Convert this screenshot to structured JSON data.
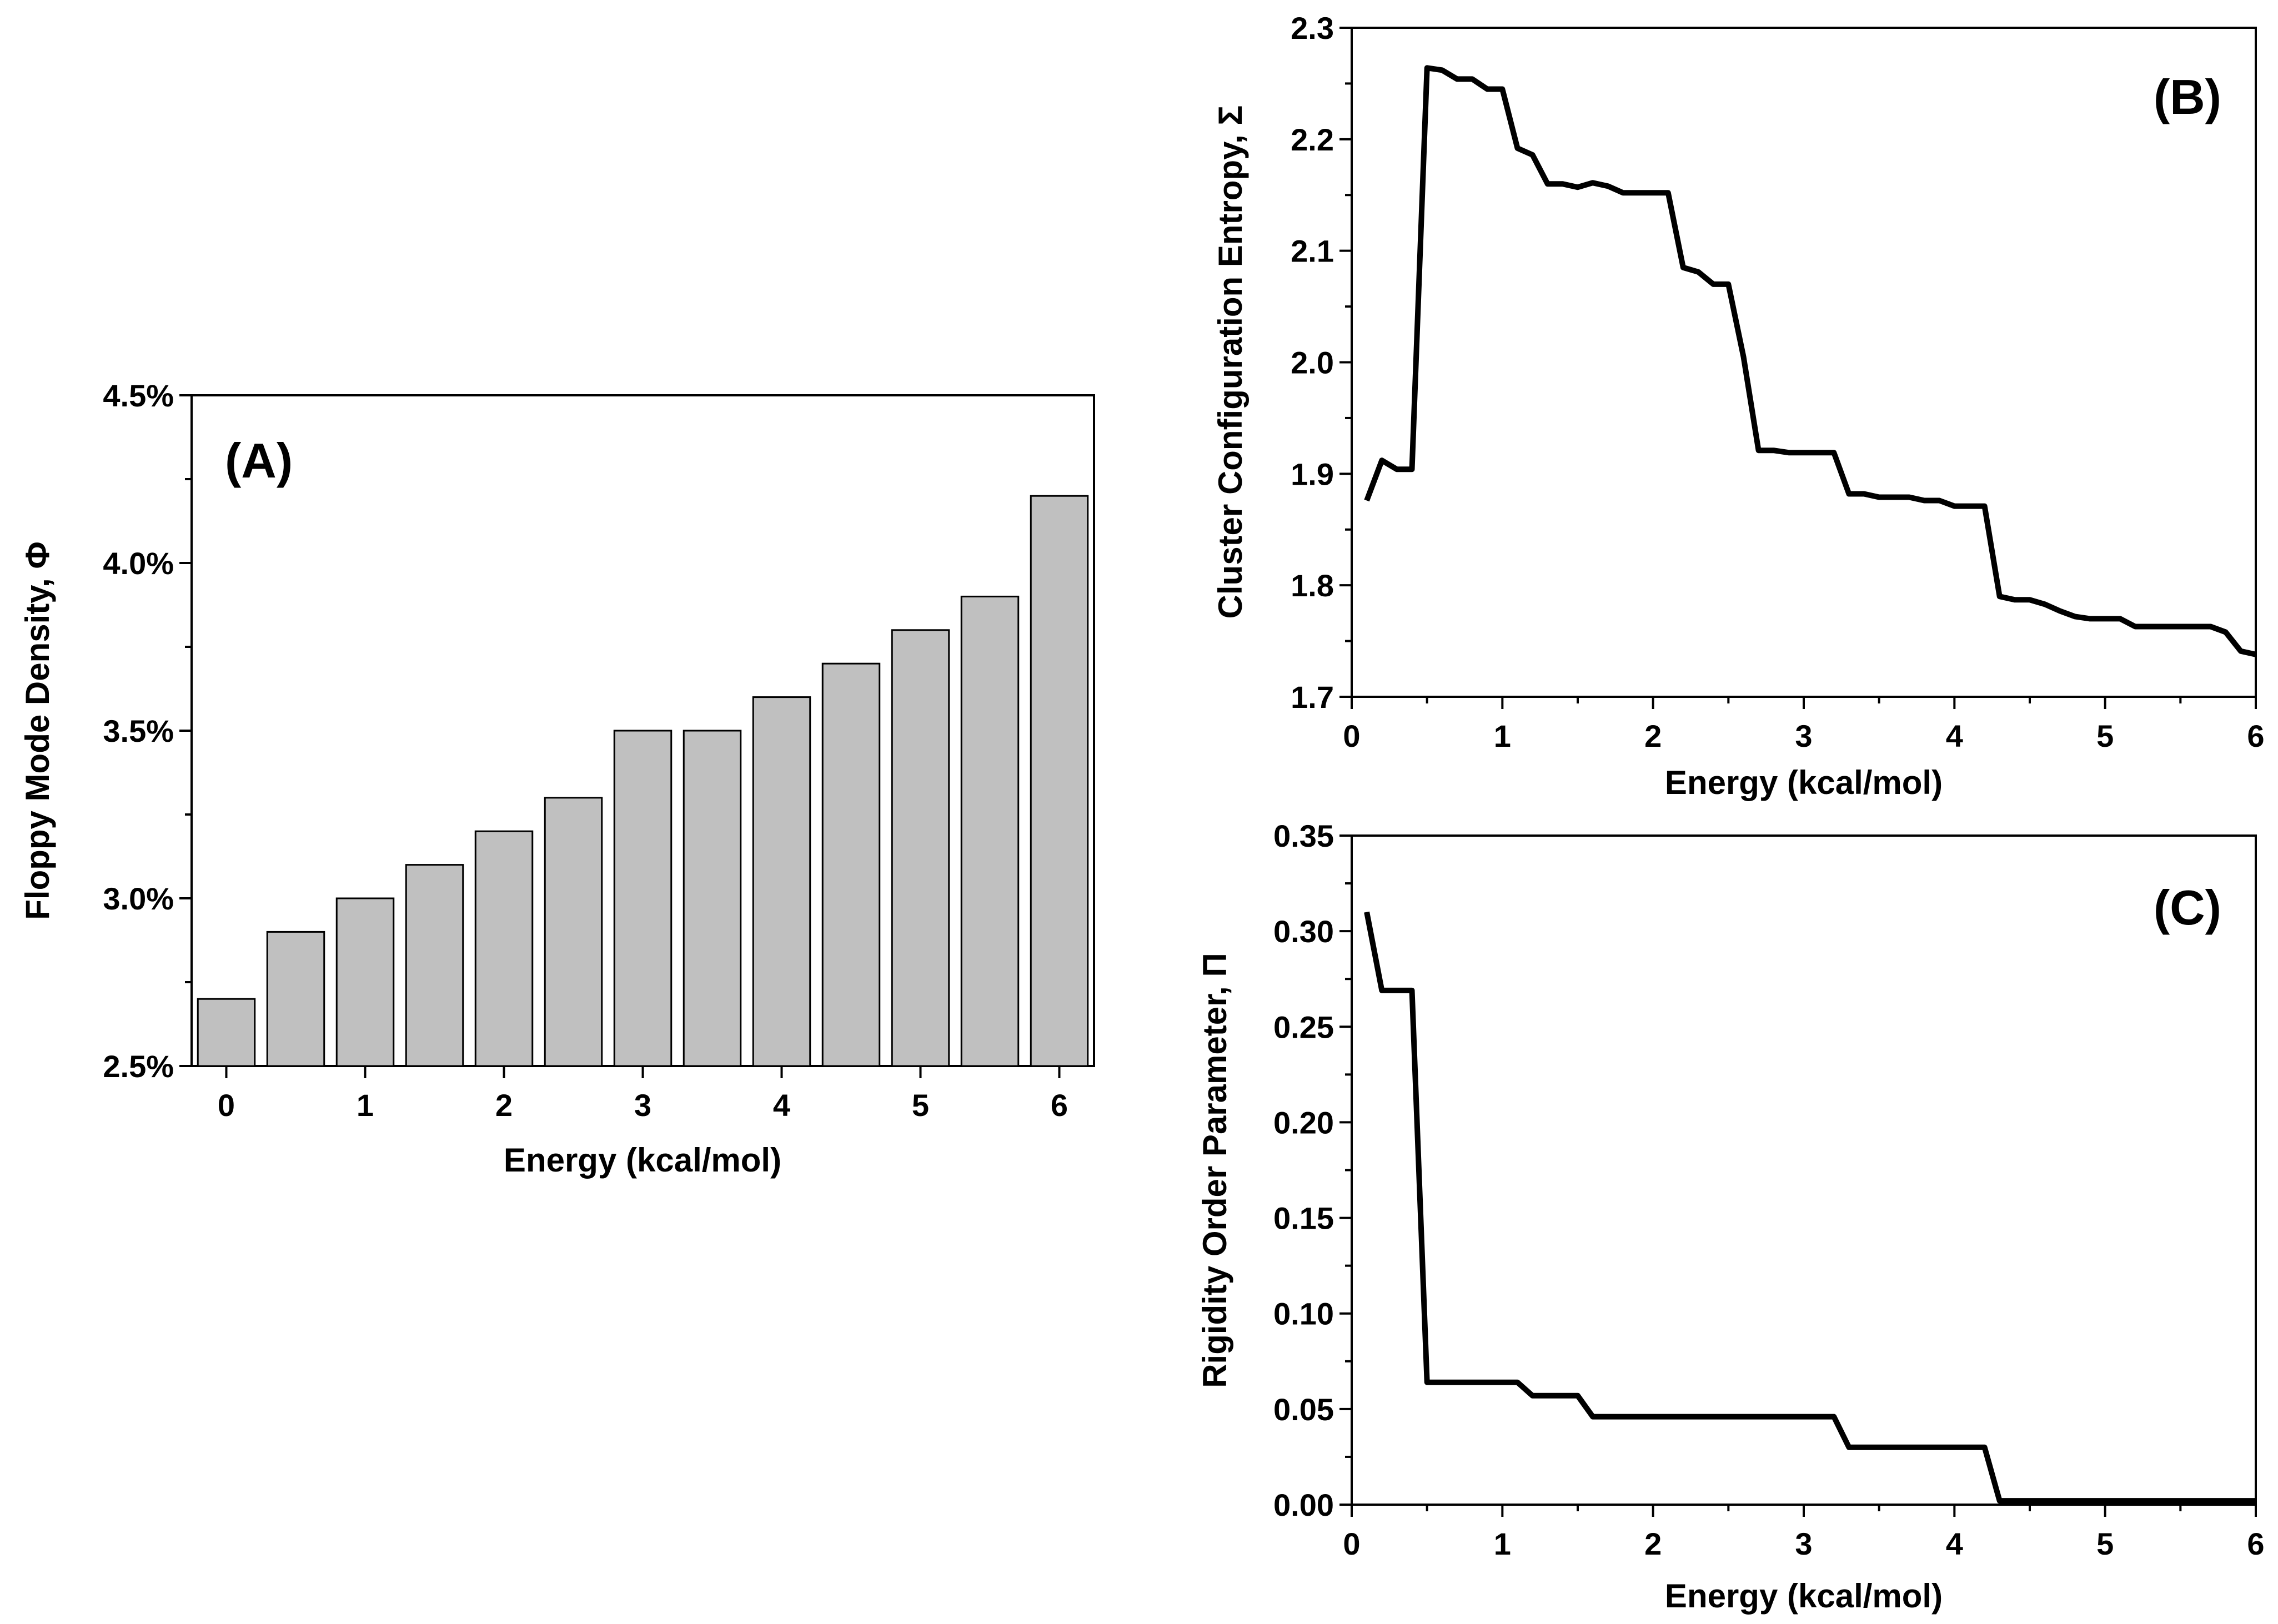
{
  "chart_data": [
    {
      "type": "bar",
      "panel_label": "(A)",
      "xlabel": "Energy (kcal/mol)",
      "ylabel": "Floppy Mode Density, Φ",
      "x": [
        0,
        0.5,
        1,
        1.5,
        2,
        2.5,
        3,
        3.5,
        4,
        4.5,
        5,
        5.5,
        6
      ],
      "values": [
        2.7,
        2.9,
        3.0,
        3.1,
        3.2,
        3.3,
        3.5,
        3.5,
        3.6,
        3.7,
        3.8,
        3.9,
        4.2
      ],
      "xlim": [
        -0.25,
        6.25
      ],
      "ylim": [
        2.5,
        4.5
      ],
      "xticks": [
        0,
        1,
        2,
        3,
        4,
        5,
        6
      ],
      "xtick_labels": [
        "0",
        "1",
        "2",
        "3",
        "4",
        "5",
        "6"
      ],
      "yticks": [
        2.5,
        3.0,
        3.5,
        4.0,
        4.5
      ],
      "ytick_labels": [
        "2.5%",
        "3.0%",
        "3.5%",
        "4.0%",
        "4.5%"
      ],
      "bar_color": "#c0c0c0",
      "grid": false
    },
    {
      "type": "line",
      "panel_label": "(B)",
      "xlabel": "Energy (kcal/mol)",
      "ylabel": "Cluster Configuration Entropy, Σ",
      "x": [
        0.1,
        0.2,
        0.3,
        0.4,
        0.5,
        0.6,
        0.7,
        0.8,
        0.9,
        1.0,
        1.1,
        1.2,
        1.3,
        1.4,
        1.5,
        1.6,
        1.7,
        1.8,
        1.9,
        2.0,
        2.1,
        2.2,
        2.3,
        2.4,
        2.5,
        2.6,
        2.7,
        2.8,
        2.9,
        3.0,
        3.1,
        3.2,
        3.3,
        3.4,
        3.5,
        3.6,
        3.7,
        3.8,
        3.9,
        4.0,
        4.1,
        4.2,
        4.3,
        4.4,
        4.5,
        4.6,
        4.7,
        4.8,
        4.9,
        5.0,
        5.1,
        5.2,
        5.3,
        5.4,
        5.5,
        5.6,
        5.7,
        5.8,
        5.9,
        6.0
      ],
      "y": [
        1.876,
        1.912,
        1.904,
        1.904,
        2.264,
        2.262,
        2.254,
        2.254,
        2.245,
        2.245,
        2.192,
        2.186,
        2.16,
        2.16,
        2.157,
        2.161,
        2.158,
        2.152,
        2.152,
        2.152,
        2.152,
        2.085,
        2.081,
        2.07,
        2.07,
        2.005,
        1.921,
        1.921,
        1.919,
        1.919,
        1.919,
        1.919,
        1.882,
        1.882,
        1.879,
        1.879,
        1.879,
        1.876,
        1.876,
        1.871,
        1.871,
        1.871,
        1.79,
        1.787,
        1.787,
        1.783,
        1.777,
        1.772,
        1.77,
        1.77,
        1.77,
        1.763,
        1.763,
        1.763,
        1.763,
        1.763,
        1.763,
        1.758,
        1.741,
        1.738
      ],
      "xlim": [
        0,
        6
      ],
      "ylim": [
        1.7,
        2.3
      ],
      "xticks": [
        0,
        1,
        2,
        3,
        4,
        5,
        6
      ],
      "xtick_labels": [
        "0",
        "1",
        "2",
        "3",
        "4",
        "5",
        "6"
      ],
      "yticks": [
        1.7,
        1.8,
        1.9,
        2.0,
        2.1,
        2.2,
        2.3
      ],
      "ytick_labels": [
        "1.7",
        "1.8",
        "1.9",
        "2.0",
        "2.1",
        "2.2",
        "2.3"
      ],
      "line_color": "#000000",
      "grid": false
    },
    {
      "type": "line",
      "panel_label": "(C)",
      "xlabel": "Energy (kcal/mol)",
      "ylabel": "Rigidity Order Parameter, Π",
      "x": [
        0.1,
        0.2,
        0.3,
        0.4,
        0.5,
        0.6,
        0.7,
        0.8,
        0.9,
        1.0,
        1.1,
        1.2,
        1.3,
        1.4,
        1.5,
        1.6,
        1.7,
        1.8,
        1.9,
        2.0,
        2.1,
        2.2,
        2.3,
        2.4,
        2.5,
        2.6,
        2.7,
        2.8,
        2.9,
        3.0,
        3.1,
        3.2,
        3.3,
        3.4,
        3.5,
        3.6,
        3.7,
        3.8,
        3.9,
        4.0,
        4.1,
        4.2,
        4.3,
        4.4,
        4.5,
        4.6,
        4.7,
        4.8,
        4.9,
        5.0,
        5.1,
        5.2,
        5.3,
        5.4,
        5.5,
        5.6,
        5.7,
        5.8,
        5.9,
        6.0
      ],
      "y": [
        0.31,
        0.269,
        0.269,
        0.269,
        0.064,
        0.064,
        0.064,
        0.064,
        0.064,
        0.064,
        0.064,
        0.057,
        0.057,
        0.057,
        0.057,
        0.046,
        0.046,
        0.046,
        0.046,
        0.046,
        0.046,
        0.046,
        0.046,
        0.046,
        0.046,
        0.046,
        0.046,
        0.046,
        0.046,
        0.046,
        0.046,
        0.046,
        0.03,
        0.03,
        0.03,
        0.03,
        0.03,
        0.03,
        0.03,
        0.03,
        0.03,
        0.03,
        0.002,
        0.002,
        0.002,
        0.002,
        0.002,
        0.002,
        0.002,
        0.002,
        0.002,
        0.002,
        0.002,
        0.002,
        0.002,
        0.002,
        0.002,
        0.002,
        0.002,
        0.002
      ],
      "xlim": [
        0,
        6
      ],
      "ylim": [
        0,
        0.35
      ],
      "xticks": [
        0,
        1,
        2,
        3,
        4,
        5,
        6
      ],
      "xtick_labels": [
        "0",
        "1",
        "2",
        "3",
        "4",
        "5",
        "6"
      ],
      "yticks": [
        0,
        0.05,
        0.1,
        0.15,
        0.2,
        0.25,
        0.3,
        0.35
      ],
      "ytick_labels": [
        "0.00",
        "0.05",
        "0.10",
        "0.15",
        "0.20",
        "0.25",
        "0.30",
        "0.35"
      ],
      "line_color": "#000000",
      "grid": false
    }
  ]
}
